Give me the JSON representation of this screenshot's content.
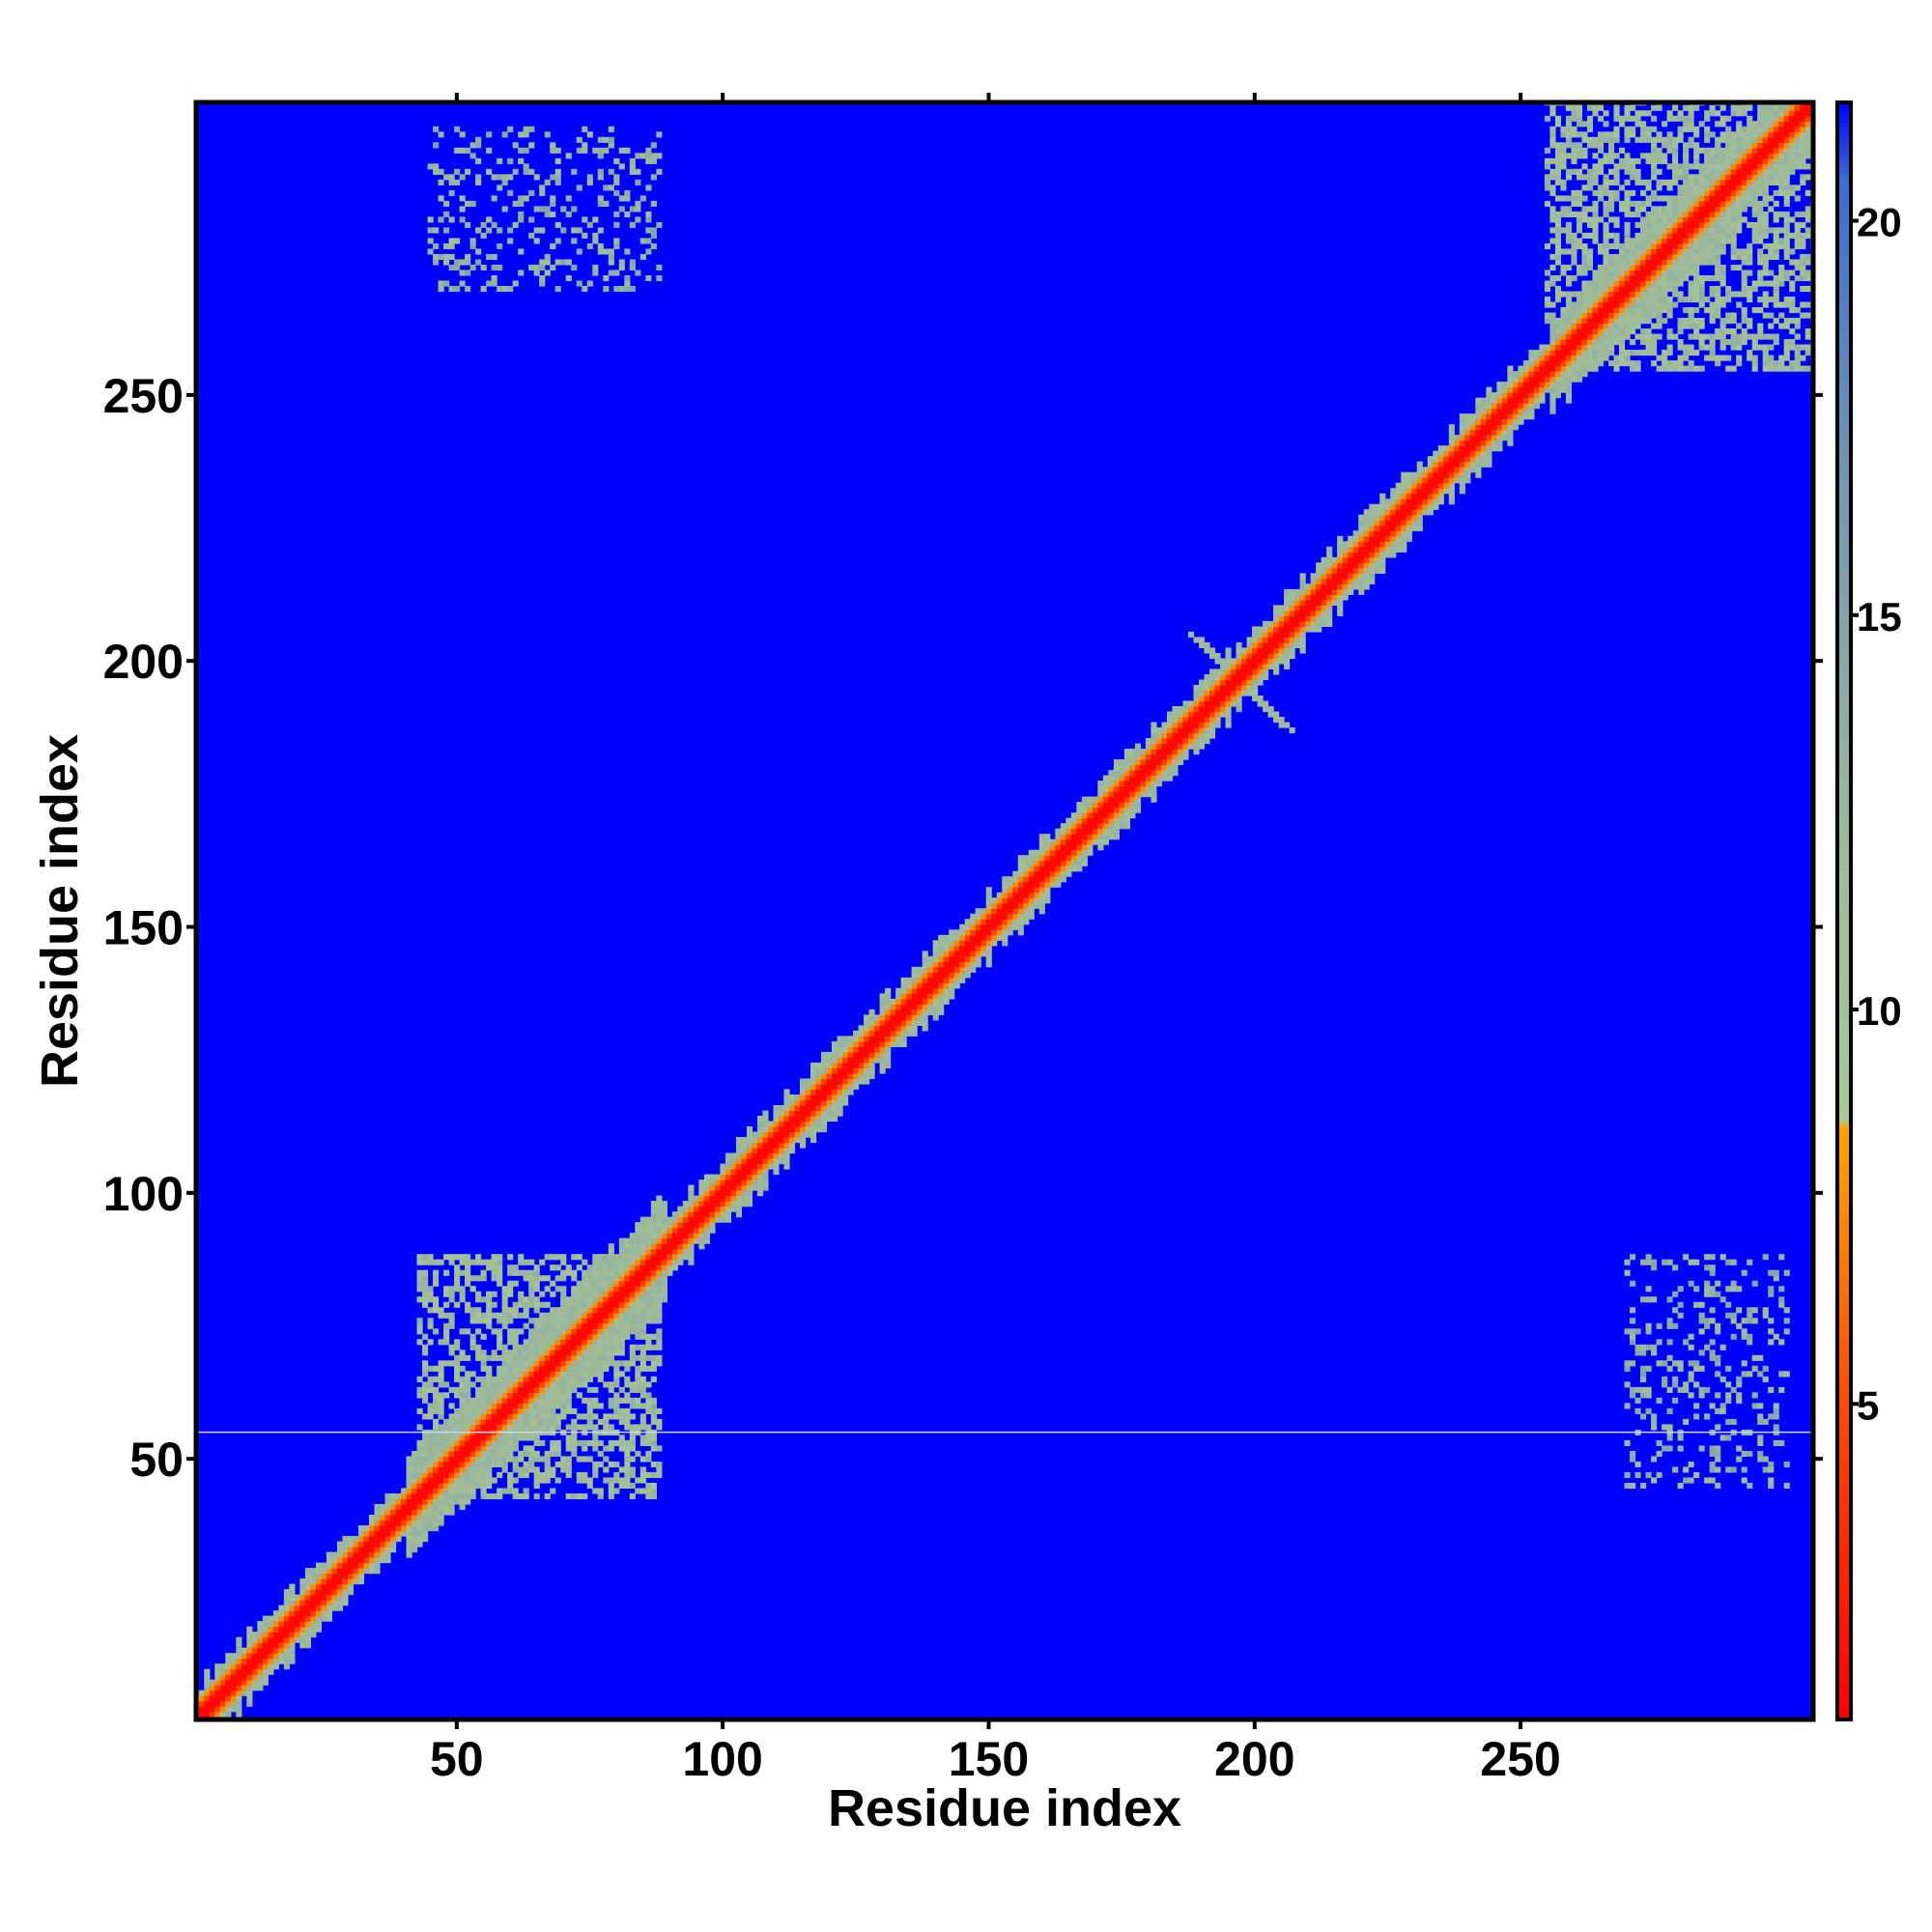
{
  "chart_data": {
    "type": "heatmap",
    "title": "",
    "xlabel": "Residue index",
    "ylabel": "Residue index",
    "xlim": [
      1,
      305
    ],
    "ylim": [
      1,
      305
    ],
    "x_ticks": [
      50,
      100,
      150,
      200,
      250
    ],
    "y_ticks": [
      50,
      100,
      150,
      200,
      250
    ],
    "colorbar": {
      "ticks": [
        5,
        10,
        15,
        20
      ],
      "range": [
        1,
        21.5
      ],
      "stops": [
        {
          "value": 1,
          "color": "#ff0000"
        },
        {
          "value": 5,
          "color": "#ff4a00"
        },
        {
          "value": 8.5,
          "color": "#ffa500"
        },
        {
          "value": 8.6,
          "color": "#a8c896"
        },
        {
          "value": 12,
          "color": "#9eba9a"
        },
        {
          "value": 17,
          "color": "#6f95b4"
        },
        {
          "value": 20.5,
          "color": "#3e6cd2"
        },
        {
          "value": 21.5,
          "color": "#0000ff"
        }
      ]
    },
    "background_color": "#0000ff",
    "diagonal_band": {
      "x_range": [
        1,
        305
      ],
      "core_value": 3,
      "halo_value": 11
    },
    "features": [
      {
        "kind": "helix-block",
        "x": [
          43,
          88
        ],
        "y": [
          43,
          88
        ],
        "value": 11
      },
      {
        "kind": "helix-block",
        "x": [
          255,
          305
        ],
        "y": [
          255,
          305
        ],
        "value": 11
      },
      {
        "kind": "cross",
        "x": [
          188,
          205
        ],
        "y": [
          188,
          205
        ],
        "value": 12
      },
      {
        "kind": "off-diagonal",
        "x": [
          45,
          88
        ],
        "y": [
          270,
          300
        ],
        "value": 13
      },
      {
        "kind": "off-diagonal",
        "x": [
          270,
          300
        ],
        "y": [
          45,
          88
        ],
        "value": 13
      },
      {
        "kind": "line",
        "y": 55,
        "x": [
          1,
          305
        ],
        "value": 16
      }
    ]
  }
}
